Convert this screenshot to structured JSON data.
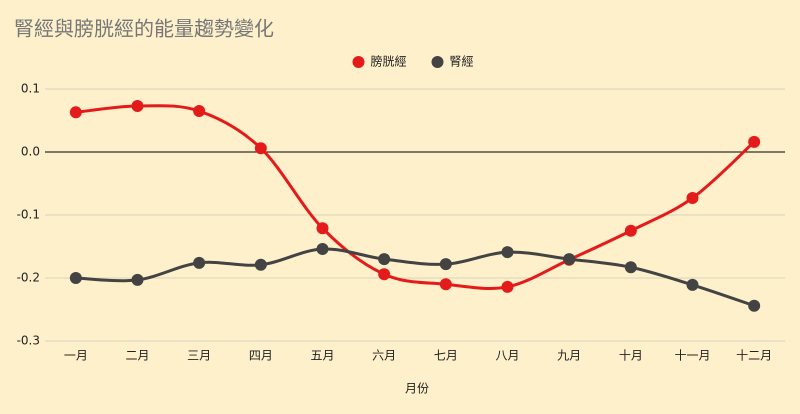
{
  "chart_data": {
    "type": "line",
    "title": "腎經與膀胱經的能量趨勢變化",
    "x_label": "月份",
    "categories": [
      "一月",
      "二月",
      "三月",
      "四月",
      "五月",
      "六月",
      "七月",
      "八月",
      "九月",
      "十月",
      "十一月",
      "十二月"
    ],
    "series": [
      {
        "name": "膀胱經",
        "color": "#e31b1b",
        "values": [
          0.063,
          0.073,
          0.065,
          0.006,
          -0.121,
          -0.194,
          -0.21,
          -0.214,
          -0.171,
          -0.125,
          -0.073,
          0.016
        ]
      },
      {
        "name": "腎經",
        "color": "#434343",
        "values": [
          -0.2,
          -0.203,
          -0.176,
          -0.179,
          -0.154,
          -0.17,
          -0.178,
          -0.159,
          -0.17,
          -0.183,
          -0.211,
          -0.244
        ]
      }
    ],
    "ylim": [
      -0.3,
      0.1
    ],
    "yticks": [
      -0.3,
      -0.2,
      -0.1,
      {
        "value": 0,
        "label": "0.0"
      },
      0.1
    ],
    "grid": true,
    "smooth": true,
    "legend": "top"
  }
}
